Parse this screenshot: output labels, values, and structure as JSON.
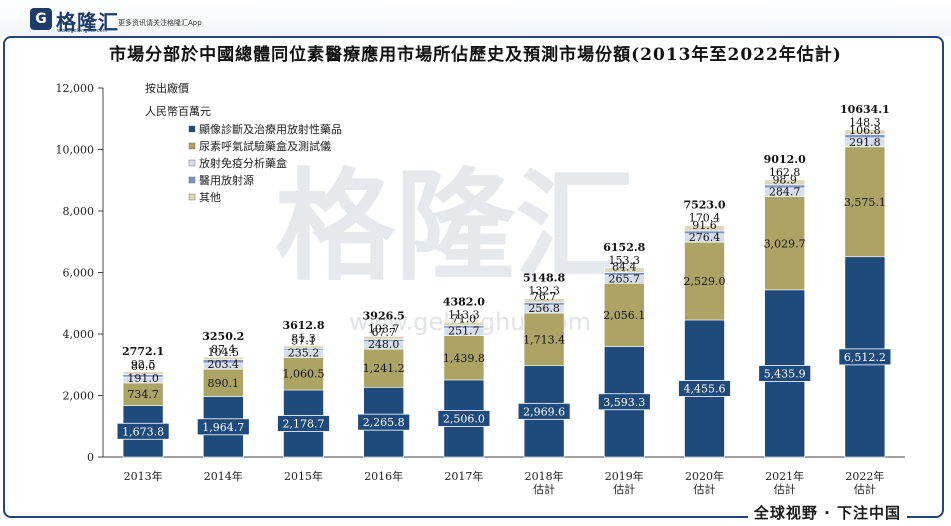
{
  "header": {
    "brand_logo": "G",
    "brand_name": "格隆汇",
    "brand_url": "www.gelonghui.com",
    "slogan": "更多资讯请关注格隆汇App"
  },
  "watermark": {
    "text": "格隆汇",
    "url": "www.gelonghui.com"
  },
  "footer": {
    "slogan": "全球视野 · 下注中国"
  },
  "colors": {
    "series1": "#1f4a7c",
    "series2": "#aca464",
    "series3": "#d6dded",
    "series4": "#7c95c6",
    "series5": "#dbd6bc"
  },
  "chart_data": {
    "type": "bar",
    "stacked": true,
    "title": "市場分部於中國總體同位素醫療應用市場所佔歷史及預測市場份額(2013年至2022年估計)",
    "ylabel_line1": "按出廠價",
    "ylabel_line2": "人民幣百萬元",
    "ylim": [
      0,
      12000
    ],
    "yticks": [
      0,
      2000,
      4000,
      6000,
      8000,
      10000,
      12000
    ],
    "ytick_labels": [
      "0",
      "2,000",
      "4,000",
      "6,000",
      "8,000",
      "10,000",
      "12,000"
    ],
    "categories": [
      "2013年",
      "2014年",
      "2015年",
      "2016年",
      "2017年",
      "2018年\n估計",
      "2019年\n估計",
      "2020年\n估計",
      "2021年\n估計",
      "2022年\n估計"
    ],
    "legend_position": "top-left",
    "series": [
      {
        "name": "顯像診斷及治療用放射性藥品",
        "values": [
          1673.8,
          1964.7,
          2178.7,
          2265.8,
          2506.0,
          2969.6,
          3593.3,
          4455.6,
          5435.9,
          6512.2
        ],
        "labels": [
          "1,673.8",
          "1,964.7",
          "2,178.7",
          "2,265.8",
          "2,506.0",
          "2,969.6",
          "3,593.3",
          "4,455.6",
          "5,435.9",
          "6,512.2"
        ]
      },
      {
        "name": "尿素呼氣試驗藥盒及測試儀",
        "values": [
          734.7,
          890.1,
          1060.5,
          1241.2,
          1439.8,
          1713.4,
          2056.1,
          2529.0,
          3029.7,
          3575.1
        ],
        "labels": [
          "734.7",
          "890.1",
          "1,060.5",
          "1,241.2",
          "1,439.8",
          "1,713.4",
          "2,056.1",
          "2,529.0",
          "3,029.7",
          "3,575.1"
        ]
      },
      {
        "name": "放射免疫分析藥盒",
        "values": [
          191.0,
          203.4,
          235.2,
          248.0,
          251.7,
          256.8,
          265.7,
          276.4,
          284.7,
          291.8
        ],
        "labels": [
          "191.0",
          "203.4",
          "235.2",
          "248.0",
          "251.7",
          "256.8",
          "265.7",
          "276.4",
          "284.7",
          "291.8"
        ]
      },
      {
        "name": "醫用放射源",
        "values": [
          80.0,
          104.5,
          57.1,
          67.7,
          71.0,
          76.7,
          84.4,
          91.6,
          98.9,
          106.8
        ],
        "labels": [
          "80.0",
          "104.5",
          "57.1",
          "67.7",
          "71.0",
          "76.7",
          "84.4",
          "91.6",
          "98.9",
          "106.8"
        ]
      },
      {
        "name": "其他",
        "values": [
          92.5,
          87.4,
          81.3,
          103.7,
          113.3,
          132.3,
          153.3,
          170.4,
          162.8,
          148.3
        ],
        "labels": [
          "92.5",
          "87.4",
          "81.3",
          "103.7",
          "113.3",
          "132.3",
          "153.3",
          "170.4",
          "162.8",
          "148.3"
        ]
      }
    ],
    "totals": [
      2772.1,
      3250.2,
      3612.8,
      3926.5,
      4382.0,
      5148.8,
      6152.8,
      7523.0,
      9012.0,
      10634.1
    ],
    "total_labels": [
      "2772.1",
      "3250.2",
      "3612.8",
      "3926.5",
      "4382.0",
      "5148.8",
      "6152.8",
      "7523.0",
      "9012.0",
      "10634.1"
    ]
  }
}
